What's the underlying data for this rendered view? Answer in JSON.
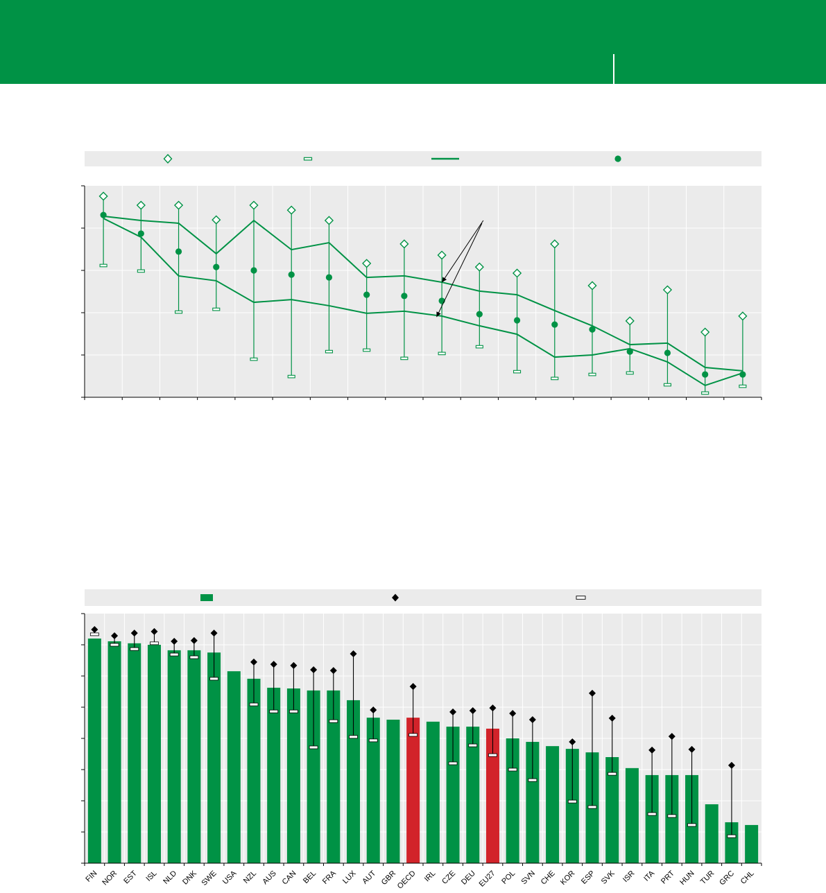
{
  "page": {
    "colors": {
      "brand_green": "#009245",
      "highlight_red": "#d2232a",
      "plot_background": "#ebebeb",
      "legend_background": "#ebebeb",
      "grid_white": "#ffffff",
      "axis_black": "#000000"
    }
  },
  "top_legend": {
    "symbols": [
      "open-diamond-marker",
      "range-cap-marker",
      "trend-line-marker",
      "filled-circle-marker"
    ]
  },
  "bottom_legend": {
    "symbols": [
      "green-bar-marker",
      "filled-diamond-marker",
      "white-dash-marker"
    ]
  },
  "chart_data": [
    {
      "type": "scatter",
      "title": "",
      "axis_note": "No axis tick labels are visible in the source image; all values are expressed as percent of plot height (0 = bottom axis, 100 = top of plot).",
      "n_columns": 18,
      "y_gridlines_pct": [
        20,
        40,
        60,
        80
      ],
      "series": [
        {
          "name": "open-diamond",
          "marker": "open-diamond",
          "values": [
            95.1,
            90.8,
            90.8,
            83.9,
            90.8,
            88.5,
            83.6,
            63.3,
            72.5,
            67.2,
            61.6,
            58.7,
            72.5,
            52.8,
            36.1,
            50.8,
            30.8,
            38.4
          ]
        },
        {
          "name": "filled-circle",
          "marker": "filled-circle",
          "values": [
            86.2,
            77.4,
            68.9,
            61.6,
            60.0,
            58.0,
            56.7,
            48.5,
            47.9,
            45.6,
            39.3,
            36.4,
            34.4,
            32.1,
            21.6,
            21.0,
            10.8,
            10.8
          ]
        },
        {
          "name": "range-low-cap",
          "marker": "cap",
          "values": [
            62.3,
            59.7,
            40.3,
            41.6,
            18.0,
            9.8,
            21.6,
            22.3,
            18.4,
            20.7,
            23.9,
            12.1,
            8.9,
            10.8,
            11.5,
            5.9,
            2.0,
            5.2
          ]
        },
        {
          "name": "line-upper",
          "marker": "line",
          "values": [
            85.6,
            83.6,
            82.3,
            67.9,
            83.6,
            69.8,
            73.1,
            56.7,
            57.4,
            54.4,
            50.2,
            48.5,
            41.0,
            33.8,
            24.9,
            25.6,
            14.1,
            12.5
          ]
        },
        {
          "name": "line-lower",
          "marker": "line",
          "values": [
            84.6,
            75.7,
            57.4,
            55.1,
            44.9,
            46.2,
            43.3,
            39.7,
            40.7,
            38.4,
            33.8,
            29.8,
            19.0,
            20.0,
            23.0,
            16.7,
            5.6,
            11.5
          ]
        }
      ],
      "annotation_arrows": [
        {
          "from_x_frac": 0.589,
          "from_y_pct": 83.6,
          "to_x_frac": 0.528,
          "to_y_pct": 54.4
        },
        {
          "from_x_frac": 0.587,
          "from_y_pct": 82.3,
          "to_x_frac": 0.52,
          "to_y_pct": 38.0
        }
      ]
    },
    {
      "type": "bar",
      "title": "",
      "axis_note": "No axis tick labels are visible in the source image; all values are expressed as percent of plot height (0 = bottom axis, 100 = top of plot).",
      "ylim": [
        0,
        100
      ],
      "y_gridlines_pct": [
        12.5,
        25,
        37.5,
        50,
        62.5,
        75,
        87.5
      ],
      "categories": [
        "FIN",
        "NOR",
        "EST",
        "ISL",
        "NLD",
        "DNK",
        "SWE",
        "USA",
        "NZL",
        "AUS",
        "CAN",
        "BEL",
        "FRA",
        "LUX",
        "AUT",
        "GBR",
        "OECD",
        "IRL",
        "CZE",
        "DEU",
        "EU27",
        "POL",
        "SVN",
        "CHE",
        "KOR",
        "ESP",
        "SVK",
        "ISR",
        "ITA",
        "PRT",
        "HUN",
        "TUR",
        "GRC",
        "CHL"
      ],
      "highlighted_categories": [
        "OECD",
        "EU27"
      ],
      "series": [
        {
          "name": "bar",
          "values": [
            90.0,
            88.9,
            88.1,
            87.5,
            85.3,
            85.3,
            84.4,
            76.9,
            73.9,
            70.3,
            70.0,
            69.2,
            69.2,
            65.3,
            58.3,
            57.5,
            58.3,
            56.7,
            54.7,
            54.7,
            53.9,
            50.0,
            48.6,
            46.9,
            45.8,
            44.4,
            42.5,
            38.1,
            35.3,
            35.3,
            35.3,
            23.6,
            16.4,
            15.3
          ]
        },
        {
          "name": "filled-diamond",
          "values": [
            93.6,
            91.1,
            92.2,
            92.8,
            88.9,
            89.2,
            92.2,
            null,
            80.6,
            79.7,
            79.2,
            77.5,
            77.2,
            83.9,
            61.4,
            null,
            70.8,
            null,
            60.6,
            61.1,
            62.2,
            60.0,
            57.5,
            null,
            48.6,
            68.1,
            58.1,
            null,
            45.3,
            50.8,
            45.6,
            null,
            39.2,
            null
          ]
        },
        {
          "name": "white-dash",
          "values": [
            91.7,
            87.5,
            85.8,
            88.1,
            83.6,
            82.5,
            73.9,
            null,
            63.6,
            60.8,
            60.8,
            46.4,
            56.9,
            50.6,
            49.2,
            null,
            51.4,
            null,
            40.0,
            47.2,
            43.3,
            37.5,
            33.3,
            null,
            24.7,
            22.5,
            35.8,
            null,
            19.7,
            18.9,
            15.3,
            null,
            10.8,
            null
          ]
        }
      ]
    }
  ]
}
